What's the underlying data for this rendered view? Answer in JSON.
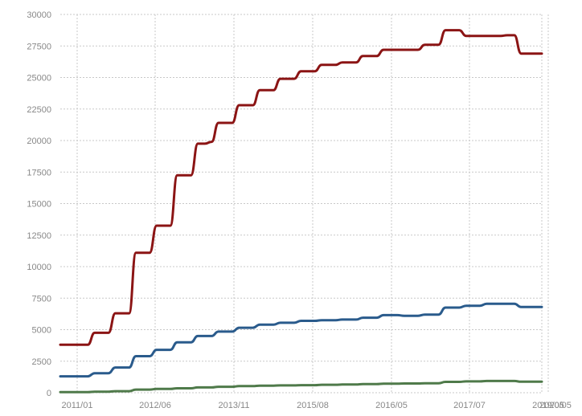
{
  "chart_data": {
    "type": "line",
    "title": "",
    "xlabel": "",
    "ylabel": "",
    "ylim": [
      0,
      30000
    ],
    "y_ticks": [
      0,
      2500,
      5000,
      7500,
      10000,
      12500,
      15000,
      17500,
      20000,
      22500,
      25000,
      27500,
      30000
    ],
    "x_tick_labels": [
      "2011/01",
      "2012/06",
      "2013/11",
      "2015/08",
      "2016/05",
      "2017/07",
      "2019/05",
      "2020/05"
    ],
    "grid": true,
    "legend": "none",
    "x": [
      "2011-01-01",
      "2011-02-01",
      "2011-03-01",
      "2011-04-01",
      "2011-05-01",
      "2011-06-01",
      "2011-07-01",
      "2011-08-01",
      "2011-09-01",
      "2011-10-01",
      "2011-11-01",
      "2011-12-01",
      "2012-01-01",
      "2012-02-01",
      "2012-03-01",
      "2012-04-01",
      "2012-05-01",
      "2012-06-01",
      "2012-07-01",
      "2012-08-01",
      "2012-09-01",
      "2012-10-01",
      "2012-11-01",
      "2012-12-01",
      "2013-01-01",
      "2013-02-01",
      "2013-03-01",
      "2013-04-01",
      "2013-05-01",
      "2013-06-01",
      "2013-07-01",
      "2013-08-01",
      "2013-09-01",
      "2013-10-01",
      "2013-11-01",
      "2013-12-01",
      "2014-01-01",
      "2014-02-01",
      "2014-03-01",
      "2014-04-01",
      "2014-05-01",
      "2014-06-01",
      "2014-07-01",
      "2014-08-01",
      "2014-09-01",
      "2014-10-01",
      "2014-11-01",
      "2014-12-01",
      "2015-01-01",
      "2015-02-01",
      "2015-03-01",
      "2015-04-01",
      "2015-05-01",
      "2015-06-01",
      "2015-07-01",
      "2015-08-01",
      "2015-09-01",
      "2015-10-01",
      "2015-11-01",
      "2015-12-01",
      "2016-01-01",
      "2016-02-01",
      "2016-03-01",
      "2016-04-01",
      "2016-05-01",
      "2016-06-01",
      "2016-07-01",
      "2016-08-01",
      "2016-09-01",
      "2016-10-01",
      "2016-11-01",
      "2016-12-01",
      "2017-01-01",
      "2017-02-01",
      "2017-03-01",
      "2017-04-01",
      "2017-05-01",
      "2017-06-01",
      "2017-07-01",
      "2017-08-01",
      "2017-09-01",
      "2017-10-01",
      "2017-11-01",
      "2017-12-01",
      "2018-01-01",
      "2018-02-01",
      "2018-03-01",
      "2018-04-01",
      "2018-05-01",
      "2018-06-01",
      "2018-07-01",
      "2018-08-01",
      "2018-09-01",
      "2018-10-01",
      "2018-11-01",
      "2018-12-01",
      "2019-01-01",
      "2019-02-01",
      "2019-03-01",
      "2019-04-01",
      "2019-05-01",
      "2019-06-01"
    ],
    "series": [
      {
        "color": "#8b1414",
        "values": [
          3800,
          3800,
          3800,
          3800,
          3800,
          4750,
          4750,
          4750,
          6300,
          6300,
          6300,
          11100,
          11100,
          11100,
          13250,
          13250,
          13250,
          17250,
          17250,
          17250,
          19750,
          19750,
          19900,
          21400,
          21400,
          21400,
          22800,
          22800,
          22800,
          24000,
          24000,
          24000,
          24900,
          24900,
          24900,
          25500,
          25500,
          25500,
          26000,
          26000,
          26000,
          26200,
          26200,
          26200,
          26700,
          26700,
          26700,
          27200,
          27200,
          27200,
          27200,
          27200,
          27200,
          27600,
          27600,
          27600,
          28750,
          28750,
          28750,
          28300,
          28300,
          28300,
          28300,
          28300,
          28300,
          28350,
          28350,
          26900,
          26900,
          26900,
          26900,
          26900,
          26900,
          26900,
          26900,
          26900,
          26900,
          26900,
          26900,
          26900,
          26900,
          26900,
          26900,
          26900,
          26900,
          26900,
          26900,
          26900,
          26900,
          26900,
          26900,
          26900,
          26900,
          26900,
          26900,
          26900,
          26900,
          26900,
          26900,
          26900,
          26900,
          26900
        ]
      },
      {
        "color": "#2a5b8c",
        "values": [
          1300,
          1300,
          1300,
          1300,
          1300,
          1550,
          1550,
          1550,
          2000,
          2000,
          2000,
          2900,
          2900,
          2900,
          3400,
          3400,
          3400,
          4000,
          4000,
          4000,
          4500,
          4500,
          4500,
          4850,
          4850,
          4850,
          5150,
          5150,
          5150,
          5400,
          5400,
          5400,
          5550,
          5550,
          5550,
          5700,
          5700,
          5700,
          5750,
          5750,
          5750,
          5800,
          5800,
          5800,
          5950,
          5950,
          5950,
          6150,
          6150,
          6150,
          6100,
          6100,
          6100,
          6200,
          6200,
          6200,
          6750,
          6750,
          6750,
          6900,
          6900,
          6900,
          7050,
          7050,
          7050,
          7050,
          7050,
          6800,
          6800,
          6800,
          6800,
          6800,
          6800,
          6800,
          6800,
          6800,
          6800,
          6800,
          6800,
          6800,
          6800,
          6800,
          6800,
          6800,
          6800,
          6800,
          6800,
          6800,
          6800,
          6800,
          6800,
          6800,
          6800,
          6800,
          6800,
          6800,
          6800,
          6800,
          6800,
          6800,
          6800,
          6800
        ]
      },
      {
        "color": "#4f7a4a",
        "values": [
          50,
          50,
          50,
          50,
          50,
          80,
          80,
          80,
          120,
          120,
          120,
          250,
          250,
          250,
          300,
          300,
          300,
          350,
          350,
          350,
          420,
          420,
          420,
          470,
          470,
          470,
          520,
          520,
          520,
          560,
          560,
          560,
          580,
          580,
          580,
          600,
          600,
          600,
          630,
          630,
          630,
          650,
          650,
          650,
          690,
          690,
          690,
          720,
          720,
          720,
          730,
          730,
          730,
          750,
          750,
          750,
          860,
          860,
          860,
          900,
          900,
          900,
          930,
          930,
          930,
          930,
          930,
          870,
          870,
          870,
          870,
          870,
          870,
          870,
          870,
          870,
          870,
          870,
          870,
          870,
          870,
          870,
          870,
          870,
          870,
          870,
          870,
          870,
          870,
          870,
          870,
          870,
          870,
          870,
          870,
          870,
          870,
          870,
          870,
          870,
          870,
          870
        ]
      }
    ]
  }
}
